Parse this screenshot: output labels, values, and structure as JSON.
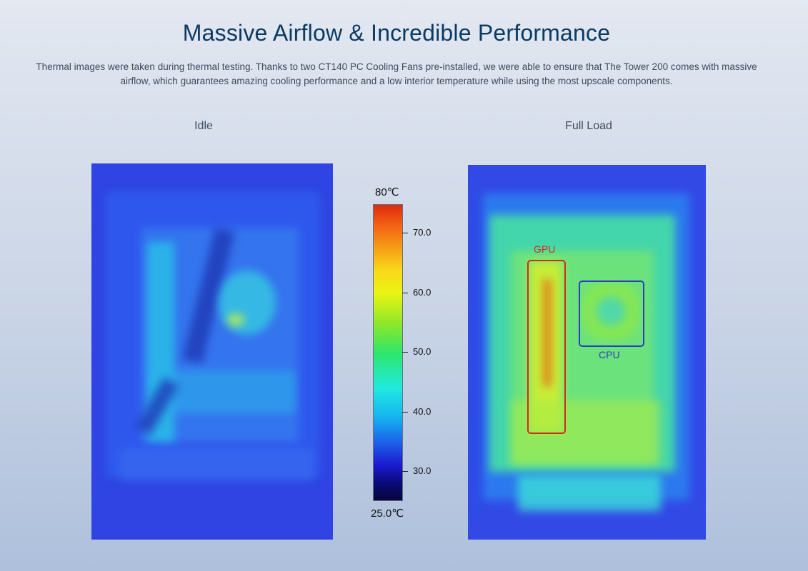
{
  "header": {
    "title": "Massive Airflow & Incredible Performance",
    "description": "Thermal images were taken during thermal testing. Thanks to two CT140 PC Cooling Fans pre-installed, we were able to ensure that The Tower 200 comes with massive airflow, which guarantees amazing cooling performance and a low interior temperature while using the most upscale components."
  },
  "panels": {
    "idle_label": "Idle",
    "full_load_label": "Full Load"
  },
  "scale": {
    "max_label": "80℃",
    "min_label": "25.0℃",
    "ticks": [
      "70.0",
      "60.0",
      "50.0",
      "40.0",
      "30.0"
    ]
  },
  "annotations": {
    "gpu_label": "GPU",
    "cpu_label": "CPU",
    "gpu_color": "#d12a1e",
    "cpu_color": "#2b3fbf"
  }
}
